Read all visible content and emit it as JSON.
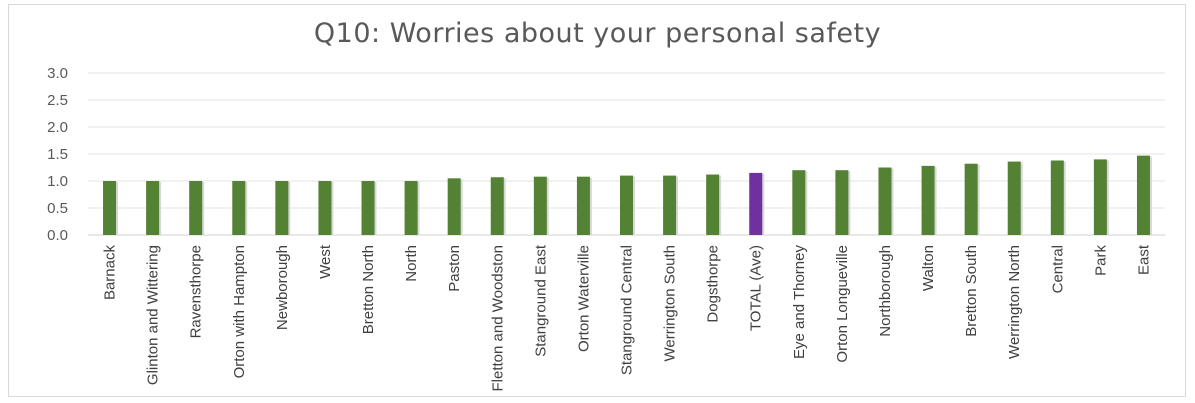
{
  "chart_data": {
    "type": "bar",
    "title": "Q10: Worries about your personal safety",
    "xlabel": "",
    "ylabel": "",
    "ylim": [
      0,
      3.0
    ],
    "yticks": [
      "0.0",
      "0.5",
      "1.0",
      "1.5",
      "2.0",
      "2.5",
      "3.0"
    ],
    "grid": true,
    "legend": "none",
    "categories": [
      "Barnack",
      "Glinton and Wittering",
      "Ravensthorpe",
      "Orton with Hampton",
      "Newborough",
      "West",
      "Bretton North",
      "North",
      "Paston",
      "Fletton and Woodston",
      "Stanground East",
      "Orton Waterville",
      "Stanground Central",
      "Werrington South",
      "Dogsthorpe",
      "TOTAL (Ave)",
      "Eye and Thorney",
      "Orton Longueville",
      "Northborough",
      "Walton",
      "Bretton South",
      "Werrington North",
      "Central",
      "Park",
      "East"
    ],
    "values": [
      1.0,
      1.0,
      1.0,
      1.0,
      1.0,
      1.0,
      1.0,
      1.0,
      1.05,
      1.07,
      1.08,
      1.08,
      1.1,
      1.1,
      1.12,
      1.15,
      1.2,
      1.2,
      1.25,
      1.28,
      1.32,
      1.36,
      1.38,
      1.4,
      1.47
    ],
    "highlight_category": "TOTAL (Ave)",
    "colors": {
      "bar": "#548235",
      "highlight": "#7030a0"
    }
  }
}
